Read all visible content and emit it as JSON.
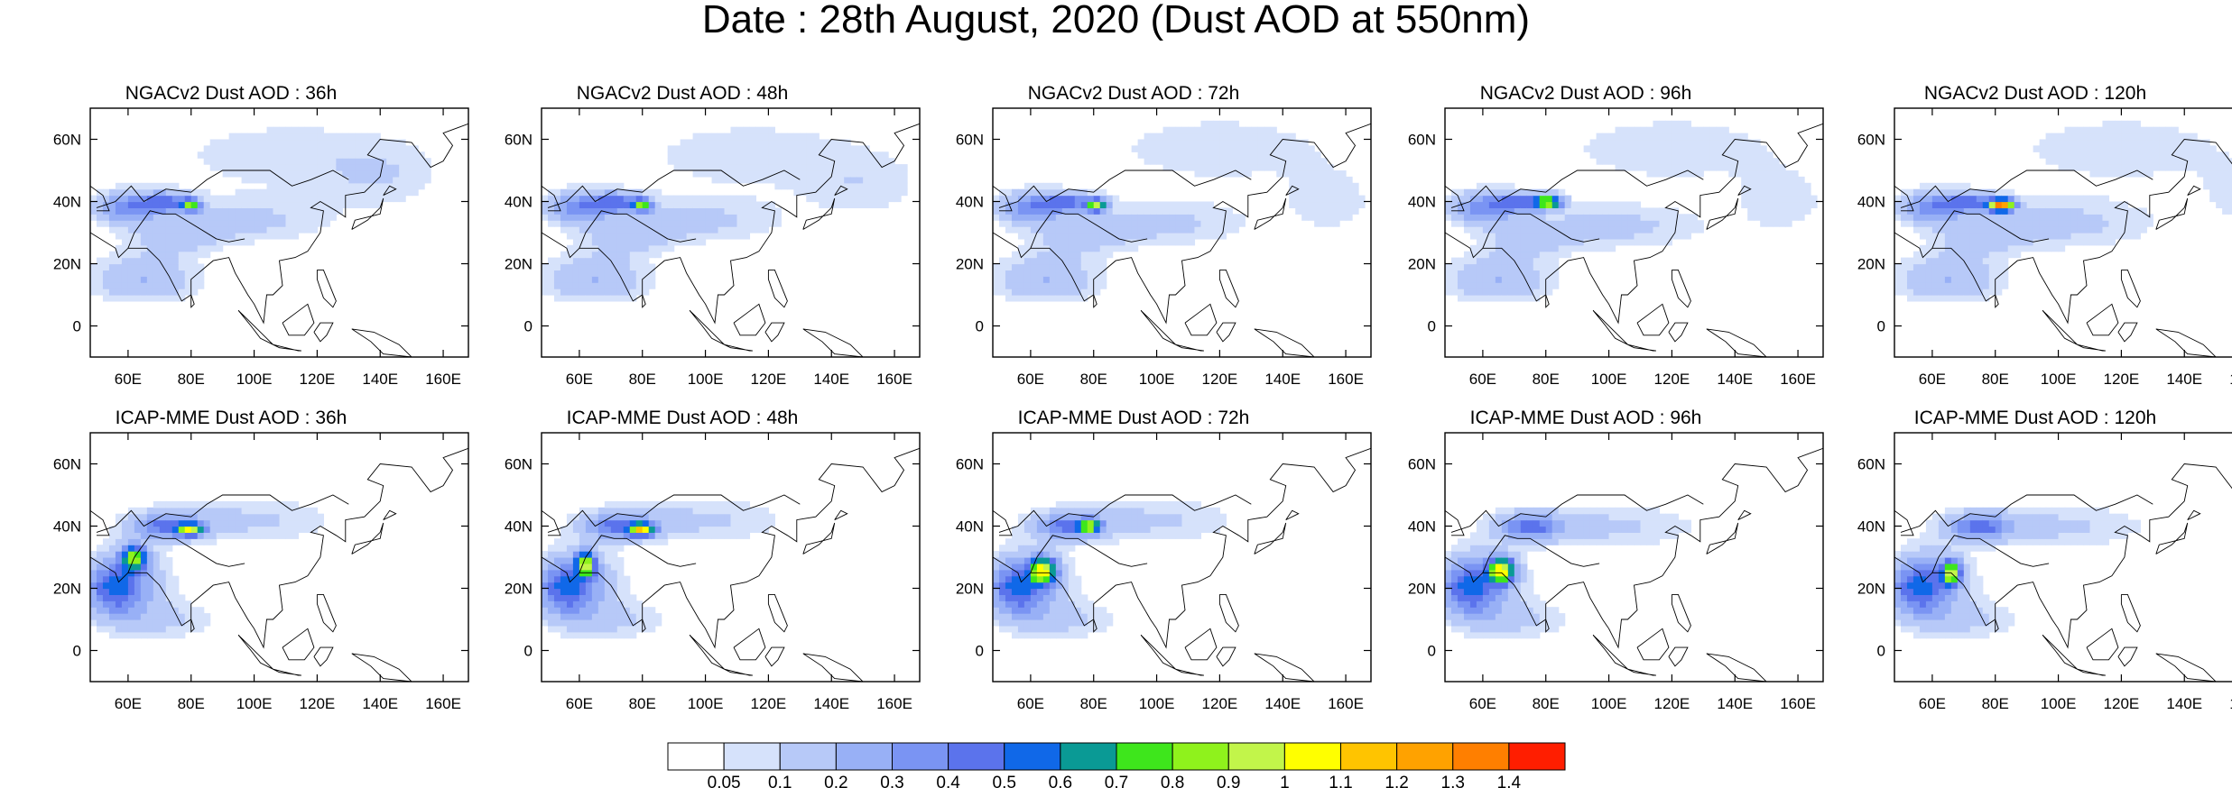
{
  "title": "Date : 28th August, 2020 (Dust AOD at 550nm)",
  "map": {
    "lon_range": [
      48,
      168
    ],
    "lat_range": [
      -10,
      70
    ],
    "x_ticks": [
      60,
      80,
      100,
      120,
      140,
      160
    ],
    "x_tick_labels": [
      "60E",
      "80E",
      "100E",
      "120E",
      "140E",
      "160E"
    ],
    "y_ticks": [
      0,
      20,
      40,
      60
    ],
    "y_tick_labels": [
      "0",
      "20N",
      "40N",
      "60N"
    ]
  },
  "panels": [
    {
      "title": "NGACv2 Dust AOD : 36h",
      "model": "NGACv2",
      "lead_time": "36h",
      "plumes": [
        [
          65,
          18,
          16,
          6,
          0.15
        ],
        [
          95,
          34,
          28,
          7,
          0.13
        ],
        [
          65,
          12,
          16,
          5,
          0.12
        ],
        [
          110,
          55,
          40,
          12,
          0.08
        ],
        [
          140,
          48,
          18,
          10,
          0.08
        ],
        [
          75,
          28,
          14,
          5,
          0.12
        ],
        [
          60,
          38,
          10,
          5,
          0.35
        ],
        [
          72,
          40,
          8,
          3,
          0.4
        ],
        [
          80,
          39,
          3,
          2,
          0.65
        ]
      ]
    },
    {
      "title": "NGACv2 Dust AOD : 48h",
      "model": "NGACv2",
      "lead_time": "48h",
      "plumes": [
        [
          65,
          18,
          16,
          6,
          0.15
        ],
        [
          95,
          34,
          28,
          7,
          0.13
        ],
        [
          65,
          12,
          16,
          5,
          0.12
        ],
        [
          115,
          55,
          40,
          12,
          0.08
        ],
        [
          150,
          45,
          18,
          10,
          0.08
        ],
        [
          75,
          28,
          14,
          5,
          0.12
        ],
        [
          60,
          38,
          10,
          5,
          0.35
        ],
        [
          72,
          40,
          8,
          3,
          0.4
        ],
        [
          80,
          39,
          3,
          2,
          0.65
        ]
      ]
    },
    {
      "title": "NGACv2 Dust AOD : 72h",
      "model": "NGACv2",
      "lead_time": "72h",
      "plumes": [
        [
          65,
          18,
          16,
          6,
          0.15
        ],
        [
          98,
          33,
          30,
          7,
          0.13
        ],
        [
          65,
          12,
          16,
          5,
          0.12
        ],
        [
          120,
          57,
          40,
          12,
          0.08
        ],
        [
          155,
          40,
          14,
          10,
          0.08
        ],
        [
          75,
          28,
          14,
          5,
          0.12
        ],
        [
          60,
          38,
          10,
          5,
          0.35
        ],
        [
          72,
          40,
          8,
          3,
          0.4
        ],
        [
          81,
          39,
          3,
          2,
          0.8
        ]
      ]
    },
    {
      "title": "NGACv2 Dust AOD : 96h",
      "model": "NGACv2",
      "lead_time": "96h",
      "plumes": [
        [
          65,
          18,
          16,
          6,
          0.15
        ],
        [
          100,
          32,
          30,
          7,
          0.13
        ],
        [
          65,
          12,
          16,
          5,
          0.12
        ],
        [
          120,
          57,
          40,
          12,
          0.08
        ],
        [
          155,
          40,
          14,
          10,
          0.08
        ],
        [
          75,
          28,
          14,
          5,
          0.12
        ],
        [
          60,
          38,
          10,
          5,
          0.35
        ],
        [
          72,
          40,
          8,
          3,
          0.4
        ],
        [
          81,
          40,
          4,
          2,
          0.85
        ]
      ]
    },
    {
      "title": "NGACv2 Dust AOD : 120h",
      "model": "NGACv2",
      "lead_time": "120h",
      "plumes": [
        [
          65,
          18,
          16,
          6,
          0.15
        ],
        [
          100,
          33,
          30,
          8,
          0.13
        ],
        [
          65,
          12,
          16,
          5,
          0.12
        ],
        [
          120,
          57,
          40,
          12,
          0.08
        ],
        [
          160,
          42,
          14,
          10,
          0.08
        ],
        [
          75,
          28,
          14,
          5,
          0.12
        ],
        [
          60,
          38,
          10,
          5,
          0.35
        ],
        [
          72,
          40,
          8,
          3,
          0.4
        ],
        [
          82,
          39,
          4,
          2,
          1.25
        ]
      ]
    },
    {
      "title": "ICAP-MME Dust AOD : 36h",
      "model": "ICAP-MME",
      "lead_time": "36h",
      "plumes": [
        [
          60,
          22,
          12,
          10,
          0.25
        ],
        [
          95,
          42,
          30,
          7,
          0.12
        ],
        [
          70,
          10,
          18,
          6,
          0.12
        ],
        [
          55,
          20,
          8,
          8,
          0.35
        ],
        [
          62,
          30,
          4,
          4,
          0.75
        ],
        [
          72,
          40,
          10,
          4,
          0.4
        ],
        [
          80,
          39,
          4,
          2,
          0.8
        ]
      ]
    },
    {
      "title": "ICAP-MME Dust AOD : 48h",
      "model": "ICAP-MME",
      "lead_time": "48h",
      "plumes": [
        [
          60,
          22,
          12,
          10,
          0.25
        ],
        [
          95,
          42,
          30,
          7,
          0.12
        ],
        [
          70,
          10,
          18,
          6,
          0.12
        ],
        [
          55,
          20,
          8,
          8,
          0.35
        ],
        [
          62,
          28,
          3,
          4,
          0.8
        ],
        [
          72,
          40,
          10,
          4,
          0.4
        ],
        [
          80,
          39,
          4,
          2,
          0.85
        ]
      ]
    },
    {
      "title": "ICAP-MME Dust AOD : 72h",
      "model": "ICAP-MME",
      "lead_time": "72h",
      "plumes": [
        [
          60,
          22,
          12,
          10,
          0.25
        ],
        [
          95,
          42,
          30,
          7,
          0.12
        ],
        [
          70,
          10,
          18,
          6,
          0.12
        ],
        [
          55,
          20,
          8,
          8,
          0.35
        ],
        [
          64,
          26,
          4,
          4,
          0.9
        ],
        [
          72,
          40,
          10,
          4,
          0.4
        ],
        [
          79,
          40,
          3,
          2,
          0.7
        ]
      ]
    },
    {
      "title": "ICAP-MME Dust AOD : 96h",
      "model": "ICAP-MME",
      "lead_time": "96h",
      "plumes": [
        [
          60,
          22,
          12,
          10,
          0.25
        ],
        [
          98,
          40,
          30,
          7,
          0.12
        ],
        [
          70,
          10,
          18,
          6,
          0.12
        ],
        [
          55,
          20,
          8,
          8,
          0.35
        ],
        [
          66,
          26,
          4,
          4,
          0.95
        ],
        [
          75,
          40,
          10,
          4,
          0.4
        ]
      ]
    },
    {
      "title": "ICAP-MME Dust AOD : 120h",
      "model": "ICAP-MME",
      "lead_time": "120h",
      "plumes": [
        [
          60,
          22,
          12,
          10,
          0.25
        ],
        [
          98,
          40,
          30,
          7,
          0.12
        ],
        [
          70,
          10,
          18,
          6,
          0.12
        ],
        [
          55,
          20,
          8,
          8,
          0.35
        ],
        [
          66,
          25,
          3,
          4,
          0.8
        ],
        [
          75,
          40,
          10,
          4,
          0.4
        ]
      ]
    }
  ],
  "colorbar": {
    "colors": [
      "#ffffff",
      "#d6e2fb",
      "#b7c9f8",
      "#98b0f6",
      "#7a94f3",
      "#5b73ec",
      "#1068e8",
      "#0a9a95",
      "#3ee61c",
      "#8ff21c",
      "#c2f54a",
      "#ffff00",
      "#ffc400",
      "#ffa200",
      "#ff7f00",
      "#ff1e00"
    ],
    "levels": [
      "0.05",
      "0.1",
      "0.2",
      "0.3",
      "0.4",
      "0.5",
      "0.6",
      "0.7",
      "0.8",
      "0.9",
      "1",
      "1.1",
      "1.2",
      "1.3",
      "1.4"
    ]
  }
}
